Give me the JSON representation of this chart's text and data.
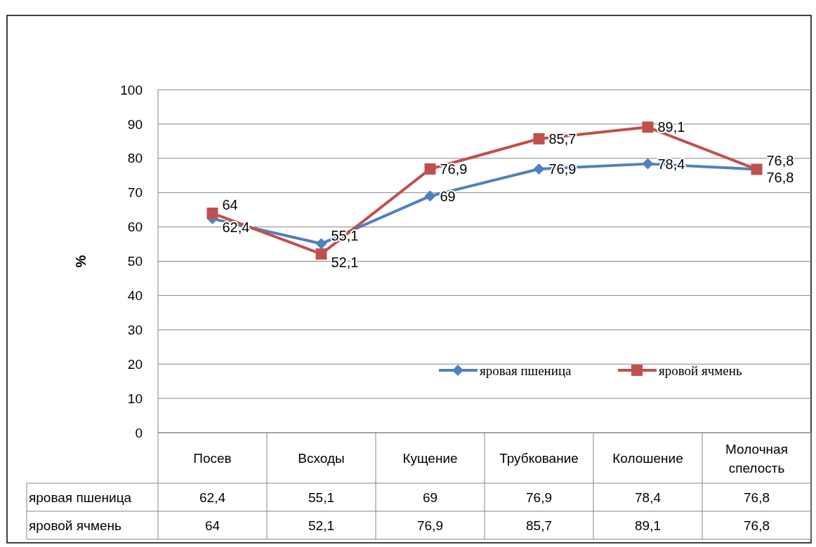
{
  "chart_data": {
    "type": "line",
    "categories": [
      "Посев",
      "Всходы",
      "Кущение",
      "Трубкование",
      "Колошение",
      "Молочная спелость"
    ],
    "ylabel": "%",
    "ylim": [
      0,
      100
    ],
    "yticks": [
      0,
      10,
      20,
      30,
      40,
      50,
      60,
      70,
      80,
      90,
      100
    ],
    "grid": "y",
    "legend": "bottom right",
    "series": [
      {
        "name": "яровая пшеница",
        "color": "#4f81bd",
        "marker": "diamond",
        "values": [
          62.4,
          55.1,
          69,
          76.9,
          78.4,
          76.8
        ],
        "value_labels": [
          "62,4",
          "55,1",
          "69",
          "76,9",
          "78,4",
          "76,8"
        ]
      },
      {
        "name": "яровой ячмень",
        "color": "#c0504d",
        "marker": "square",
        "values": [
          64,
          52.1,
          76.9,
          85.7,
          89.1,
          76.8
        ],
        "value_labels": [
          "64",
          "52,1",
          "76,9",
          "85,7",
          "89,1",
          "76,8"
        ]
      }
    ]
  }
}
